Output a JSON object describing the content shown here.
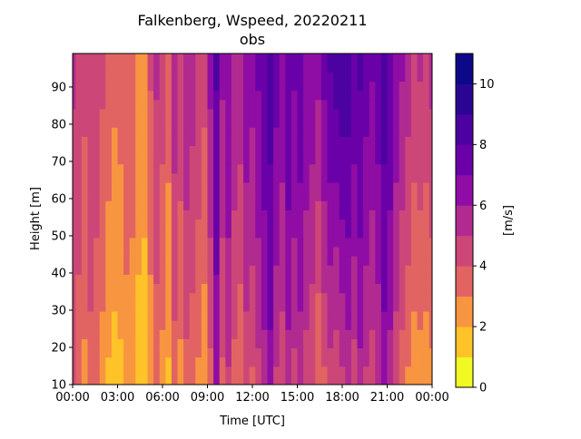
{
  "chart_data": {
    "type": "heatmap",
    "title": "Falkenberg, Wspeed, 20220211",
    "subtitle": "obs",
    "xlabel": "Time [UTC]",
    "ylabel": "Height [m]",
    "colorbar_label": "[m/s]",
    "x_unit": "hours UTC",
    "xlim": [
      0,
      24
    ],
    "ylim": [
      10,
      99
    ],
    "x_ticks": [
      0,
      3,
      6,
      9,
      12,
      15,
      18,
      21,
      24
    ],
    "x_tick_labels": [
      "00:00",
      "03:00",
      "06:00",
      "09:00",
      "12:00",
      "15:00",
      "18:00",
      "21:00",
      "00:00"
    ],
    "y_ticks": [
      10,
      20,
      30,
      40,
      50,
      60,
      70,
      80,
      90
    ],
    "y_tick_labels": [
      "10",
      "20",
      "30",
      "40",
      "50",
      "60",
      "70",
      "80",
      "90"
    ],
    "colorbar_ticks": [
      0,
      2,
      4,
      6,
      8,
      10
    ],
    "colorbar_tick_labels": [
      "0",
      "2",
      "4",
      "6",
      "8",
      "10"
    ],
    "levels": [
      0,
      1,
      2,
      3,
      4,
      5,
      6,
      7,
      8,
      9,
      10,
      11
    ],
    "colormap": "plasma_r",
    "level_colors": [
      "#f0f921",
      "#fdc328",
      "#f89540",
      "#e16462",
      "#cc4778",
      "#b12a90",
      "#8f0da4",
      "#6a00a8",
      "#4c02a1",
      "#2a0593",
      "#0d0887"
    ],
    "heights": [
      10,
      30,
      50,
      70,
      99
    ],
    "columns": [
      {
        "t": 0.0,
        "ws": [
          4.0,
          4.3,
          4.6,
          4.8,
          5.2
        ]
      },
      {
        "t": 0.4,
        "ws": [
          3.2,
          3.8,
          4.2,
          4.5,
          4.9
        ]
      },
      {
        "t": 0.8,
        "ws": [
          2.6,
          3.2,
          3.6,
          3.9,
          4.4
        ]
      },
      {
        "t": 1.2,
        "ws": [
          3.3,
          4.0,
          4.4,
          4.6,
          5.0
        ]
      },
      {
        "t": 1.6,
        "ws": [
          3.0,
          3.6,
          4.0,
          4.3,
          4.7
        ]
      },
      {
        "t": 2.0,
        "ws": [
          2.4,
          3.0,
          3.4,
          3.7,
          4.3
        ]
      },
      {
        "t": 2.4,
        "ws": [
          1.8,
          2.4,
          2.8,
          3.2,
          3.7
        ]
      },
      {
        "t": 2.8,
        "ws": [
          1.6,
          2.0,
          2.4,
          2.8,
          3.4
        ]
      },
      {
        "t": 3.2,
        "ws": [
          1.7,
          2.2,
          2.6,
          3.0,
          3.5
        ]
      },
      {
        "t": 3.6,
        "ws": [
          2.2,
          2.8,
          3.2,
          3.5,
          4.0
        ]
      },
      {
        "t": 4.0,
        "ws": [
          2.0,
          2.6,
          3.0,
          3.4,
          3.8
        ]
      },
      {
        "t": 4.4,
        "ws": [
          1.5,
          1.8,
          2.2,
          2.5,
          2.8
        ]
      },
      {
        "t": 4.8,
        "ws": [
          1.4,
          1.8,
          2.0,
          2.3,
          2.7
        ]
      },
      {
        "t": 5.2,
        "ws": [
          2.2,
          2.8,
          3.2,
          3.6,
          4.2
        ]
      },
      {
        "t": 5.6,
        "ws": [
          3.2,
          3.8,
          4.3,
          4.7,
          5.2
        ]
      },
      {
        "t": 6.0,
        "ws": [
          2.5,
          3.2,
          3.6,
          4.0,
          4.5
        ]
      },
      {
        "t": 6.4,
        "ws": [
          1.8,
          2.4,
          2.8,
          3.1,
          3.5
        ]
      },
      {
        "t": 6.8,
        "ws": [
          3.4,
          4.1,
          4.6,
          5.1,
          5.6
        ]
      },
      {
        "t": 7.2,
        "ws": [
          2.6,
          3.3,
          3.8,
          4.2,
          4.8
        ]
      },
      {
        "t": 7.6,
        "ws": [
          3.6,
          4.3,
          4.8,
          5.3,
          6.0
        ]
      },
      {
        "t": 8.0,
        "ws": [
          3.2,
          3.9,
          4.4,
          4.9,
          5.5
        ]
      },
      {
        "t": 8.4,
        "ws": [
          2.8,
          3.4,
          3.9,
          4.4,
          5.0
        ]
      },
      {
        "t": 8.8,
        "ws": [
          2.2,
          2.8,
          3.3,
          3.8,
          4.5
        ]
      },
      {
        "t": 9.2,
        "ws": [
          3.6,
          4.4,
          5.0,
          5.6,
          6.4
        ]
      },
      {
        "t": 9.6,
        "ws": [
          6.0,
          6.8,
          7.2,
          7.6,
          8.2
        ]
      },
      {
        "t": 10.0,
        "ws": [
          3.8,
          4.4,
          5.0,
          5.6,
          6.3
        ]
      },
      {
        "t": 10.4,
        "ws": [
          4.8,
          5.5,
          6.0,
          6.4,
          7.0
        ]
      },
      {
        "t": 10.8,
        "ws": [
          3.6,
          4.2,
          4.8,
          5.3,
          6.0
        ]
      },
      {
        "t": 11.2,
        "ws": [
          3.0,
          3.8,
          4.4,
          5.0,
          5.6
        ]
      },
      {
        "t": 11.6,
        "ws": [
          4.4,
          5.0,
          5.6,
          6.2,
          6.8
        ]
      },
      {
        "t": 12.0,
        "ws": [
          3.8,
          4.6,
          5.2,
          5.8,
          6.5
        ]
      },
      {
        "t": 12.4,
        "ws": [
          4.6,
          5.4,
          6.0,
          6.6,
          7.2
        ]
      },
      {
        "t": 12.8,
        "ws": [
          5.4,
          6.2,
          6.8,
          7.4,
          7.9
        ]
      },
      {
        "t": 13.2,
        "ws": [
          6.4,
          7.2,
          7.7,
          8.0,
          8.4
        ]
      },
      {
        "t": 13.6,
        "ws": [
          4.8,
          5.6,
          6.2,
          6.8,
          7.4
        ]
      },
      {
        "t": 14.0,
        "ws": [
          4.2,
          5.0,
          5.6,
          6.2,
          6.9
        ]
      },
      {
        "t": 14.4,
        "ws": [
          5.4,
          6.2,
          6.8,
          7.4,
          8.0
        ]
      },
      {
        "t": 14.8,
        "ws": [
          4.6,
          5.4,
          6.0,
          6.6,
          7.2
        ]
      },
      {
        "t": 15.2,
        "ws": [
          5.2,
          6.0,
          6.6,
          7.2,
          7.8
        ]
      },
      {
        "t": 15.6,
        "ws": [
          4.4,
          5.2,
          5.8,
          6.4,
          7.0
        ]
      },
      {
        "t": 16.0,
        "ws": [
          4.0,
          4.8,
          5.4,
          6.0,
          6.8
        ]
      },
      {
        "t": 16.4,
        "ws": [
          3.0,
          3.8,
          4.6,
          5.4,
          6.4
        ]
      },
      {
        "t": 16.8,
        "ws": [
          3.8,
          4.8,
          5.6,
          6.4,
          7.4
        ]
      },
      {
        "t": 17.2,
        "ws": [
          4.6,
          5.4,
          6.4,
          7.2,
          8.2
        ]
      },
      {
        "t": 17.6,
        "ws": [
          4.2,
          5.2,
          6.2,
          7.4,
          8.6
        ]
      },
      {
        "t": 18.0,
        "ws": [
          4.8,
          5.8,
          6.8,
          7.8,
          8.8
        ]
      },
      {
        "t": 18.4,
        "ws": [
          5.2,
          6.2,
          7.0,
          7.8,
          8.6
        ]
      },
      {
        "t": 18.8,
        "ws": [
          4.4,
          5.4,
          6.2,
          7.0,
          8.0
        ]
      },
      {
        "t": 19.2,
        "ws": [
          5.6,
          6.4,
          7.0,
          7.6,
          8.2
        ]
      },
      {
        "t": 19.6,
        "ws": [
          4.8,
          5.6,
          6.2,
          6.8,
          7.6
        ]
      },
      {
        "t": 20.0,
        "ws": [
          4.4,
          5.2,
          5.8,
          6.4,
          7.2
        ]
      },
      {
        "t": 20.4,
        "ws": [
          5.0,
          5.8,
          6.4,
          7.0,
          7.8
        ]
      },
      {
        "t": 20.8,
        "ws": [
          6.2,
          7.0,
          7.6,
          8.0,
          8.6
        ]
      },
      {
        "t": 21.2,
        "ws": [
          5.4,
          6.2,
          6.8,
          7.4,
          8.0
        ]
      },
      {
        "t": 21.6,
        "ws": [
          4.2,
          5.0,
          5.6,
          6.2,
          7.0
        ]
      },
      {
        "t": 22.0,
        "ws": [
          3.4,
          4.2,
          4.8,
          5.4,
          6.2
        ]
      },
      {
        "t": 22.4,
        "ws": [
          2.8,
          3.6,
          4.2,
          4.8,
          5.6
        ]
      },
      {
        "t": 22.8,
        "ws": [
          2.2,
          3.0,
          3.6,
          4.2,
          5.0
        ]
      },
      {
        "t": 23.2,
        "ws": [
          2.4,
          3.2,
          3.8,
          4.4,
          5.2
        ]
      },
      {
        "t": 23.6,
        "ws": [
          2.0,
          3.0,
          3.6,
          4.2,
          5.0
        ]
      },
      {
        "t": 24.0,
        "ws": [
          2.6,
          3.4,
          4.0,
          4.6,
          5.4
        ]
      }
    ]
  }
}
